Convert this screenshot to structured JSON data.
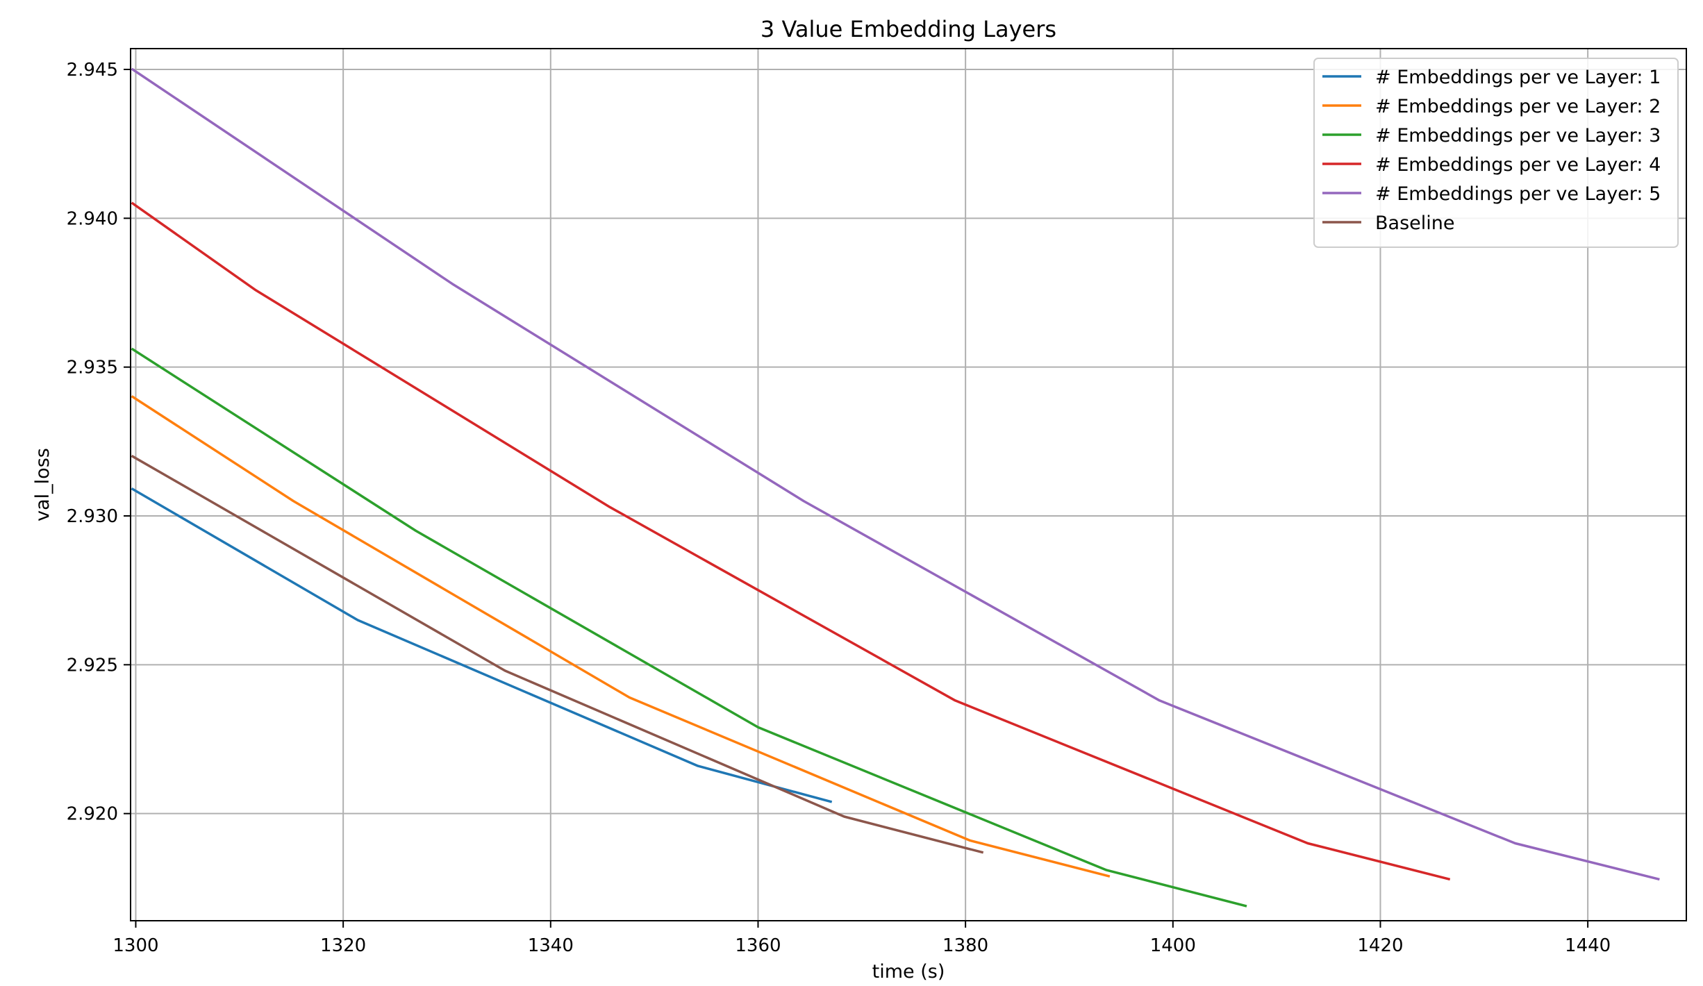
{
  "chart_data": {
    "type": "line",
    "title": "3 Value Embedding Layers",
    "xlabel": "time (s)",
    "ylabel": "val_loss",
    "xlim": [
      1299.5,
      1449.5
    ],
    "ylim": [
      2.9164,
      2.9457
    ],
    "xticks": [
      1300,
      1320,
      1340,
      1360,
      1380,
      1400,
      1420,
      1440
    ],
    "xtick_labels": [
      "1300",
      "1320",
      "1340",
      "1360",
      "1380",
      "1400",
      "1420",
      "1440"
    ],
    "yticks": [
      2.92,
      2.925,
      2.93,
      2.935,
      2.94,
      2.945
    ],
    "ytick_labels": [
      "2.920",
      "2.925",
      "2.930",
      "2.935",
      "2.940",
      "2.945"
    ],
    "grid": true,
    "legend_position": "top-right",
    "series": [
      {
        "name": "# Embeddings per ve Layer: 1",
        "color": "#1f77b4",
        "points": [
          [
            1299.7,
            2.9309
          ],
          [
            1321.4,
            2.9265
          ],
          [
            1354.2,
            2.9216
          ],
          [
            1367.0,
            2.9204
          ]
        ]
      },
      {
        "name": "# Embeddings per ve Layer: 2",
        "color": "#ff7f0e",
        "points": [
          [
            1299.7,
            2.934
          ],
          [
            1315.2,
            2.9305
          ],
          [
            1347.6,
            2.9239
          ],
          [
            1380.4,
            2.9191
          ],
          [
            1393.8,
            2.9179
          ]
        ]
      },
      {
        "name": "# Embeddings per ve Layer: 3",
        "color": "#2ca02c",
        "points": [
          [
            1299.7,
            2.9356
          ],
          [
            1327.0,
            2.9295
          ],
          [
            1360.0,
            2.9229
          ],
          [
            1393.6,
            2.9181
          ],
          [
            1407.0,
            2.9169
          ]
        ]
      },
      {
        "name": "# Embeddings per ve Layer: 4",
        "color": "#d62728",
        "points": [
          [
            1299.7,
            2.9405
          ],
          [
            1311.5,
            2.9376
          ],
          [
            1345.7,
            2.9303
          ],
          [
            1379.0,
            2.9238
          ],
          [
            1413.0,
            2.919
          ],
          [
            1426.6,
            2.9178
          ]
        ]
      },
      {
        "name": "# Embeddings per ve Layer: 5",
        "color": "#9467bd",
        "points": [
          [
            1299.7,
            2.945
          ],
          [
            1330.5,
            2.9378
          ],
          [
            1364.4,
            2.9305
          ],
          [
            1398.7,
            2.9238
          ],
          [
            1433.0,
            2.919
          ],
          [
            1446.8,
            2.9178
          ]
        ]
      },
      {
        "name": "Baseline",
        "color": "#8c564b",
        "points": [
          [
            1299.7,
            2.932
          ],
          [
            1303.7,
            2.9312
          ],
          [
            1335.6,
            2.9248
          ],
          [
            1368.3,
            2.9199
          ],
          [
            1381.6,
            2.9187
          ]
        ]
      }
    ]
  }
}
